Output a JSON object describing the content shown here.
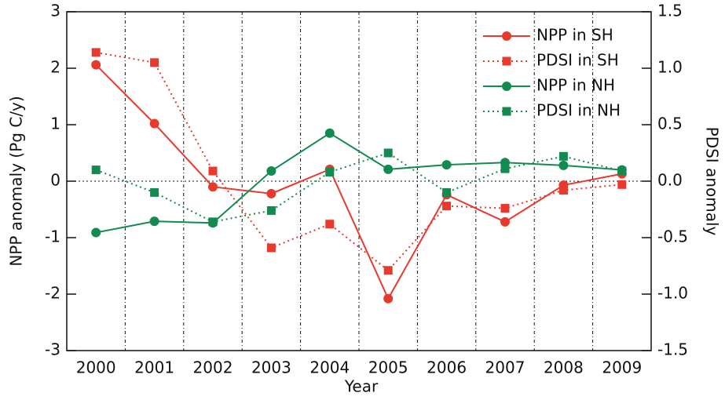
{
  "chart_data": {
    "type": "line",
    "xlabel": "Year",
    "ylabel": "NPP anomaly (Pg C/y)",
    "y2label": "PDSI anomaly",
    "categories": [
      "2000",
      "2001",
      "2002",
      "2003",
      "2004",
      "2005",
      "2006",
      "2007",
      "2008",
      "2009"
    ],
    "ylim": [
      -3,
      3
    ],
    "yticks": [
      -3,
      -2,
      -1,
      0,
      1,
      2,
      3
    ],
    "y2lim": [
      -1.5,
      1.5
    ],
    "y2ticks": [
      -1.5,
      {
        "value": -1.0,
        "label": "-1.0"
      },
      -0.5,
      {
        "value": 0.0,
        "label": "0.0"
      },
      0.5,
      {
        "value": 1.0,
        "label": "1.0"
      },
      1.5
    ],
    "legend": "upper right",
    "series": [
      {
        "name": "NPP in SH",
        "color": "#e8392f",
        "marker": "circle",
        "dash": "solid",
        "values": [
          2.06,
          1.02,
          -0.1,
          -0.22,
          0.21,
          -2.08,
          -0.24,
          -0.72,
          -0.07,
          0.13
        ]
      },
      {
        "name": "PDSI in SH",
        "color": "#e8392f",
        "marker": "square",
        "dash": "dotted",
        "axis": "y2",
        "values": [
          1.14,
          1.05,
          0.09,
          -0.59,
          -0.38,
          -0.79,
          -0.22,
          -0.24,
          -0.08,
          -0.03
        ]
      },
      {
        "name": "NPP in NH",
        "color": "#138a4f",
        "marker": "circle",
        "dash": "solid",
        "values": [
          -0.91,
          -0.71,
          -0.74,
          0.18,
          0.85,
          0.21,
          0.29,
          0.33,
          0.28,
          0.2
        ]
      },
      {
        "name": "PDSI in NH",
        "color": "#138a4f",
        "marker": "square",
        "dash": "dotted",
        "axis": "y2",
        "values": [
          0.1,
          -0.1,
          -0.36,
          -0.26,
          0.08,
          0.25,
          -0.1,
          0.11,
          0.22,
          0.09
        ]
      }
    ]
  }
}
